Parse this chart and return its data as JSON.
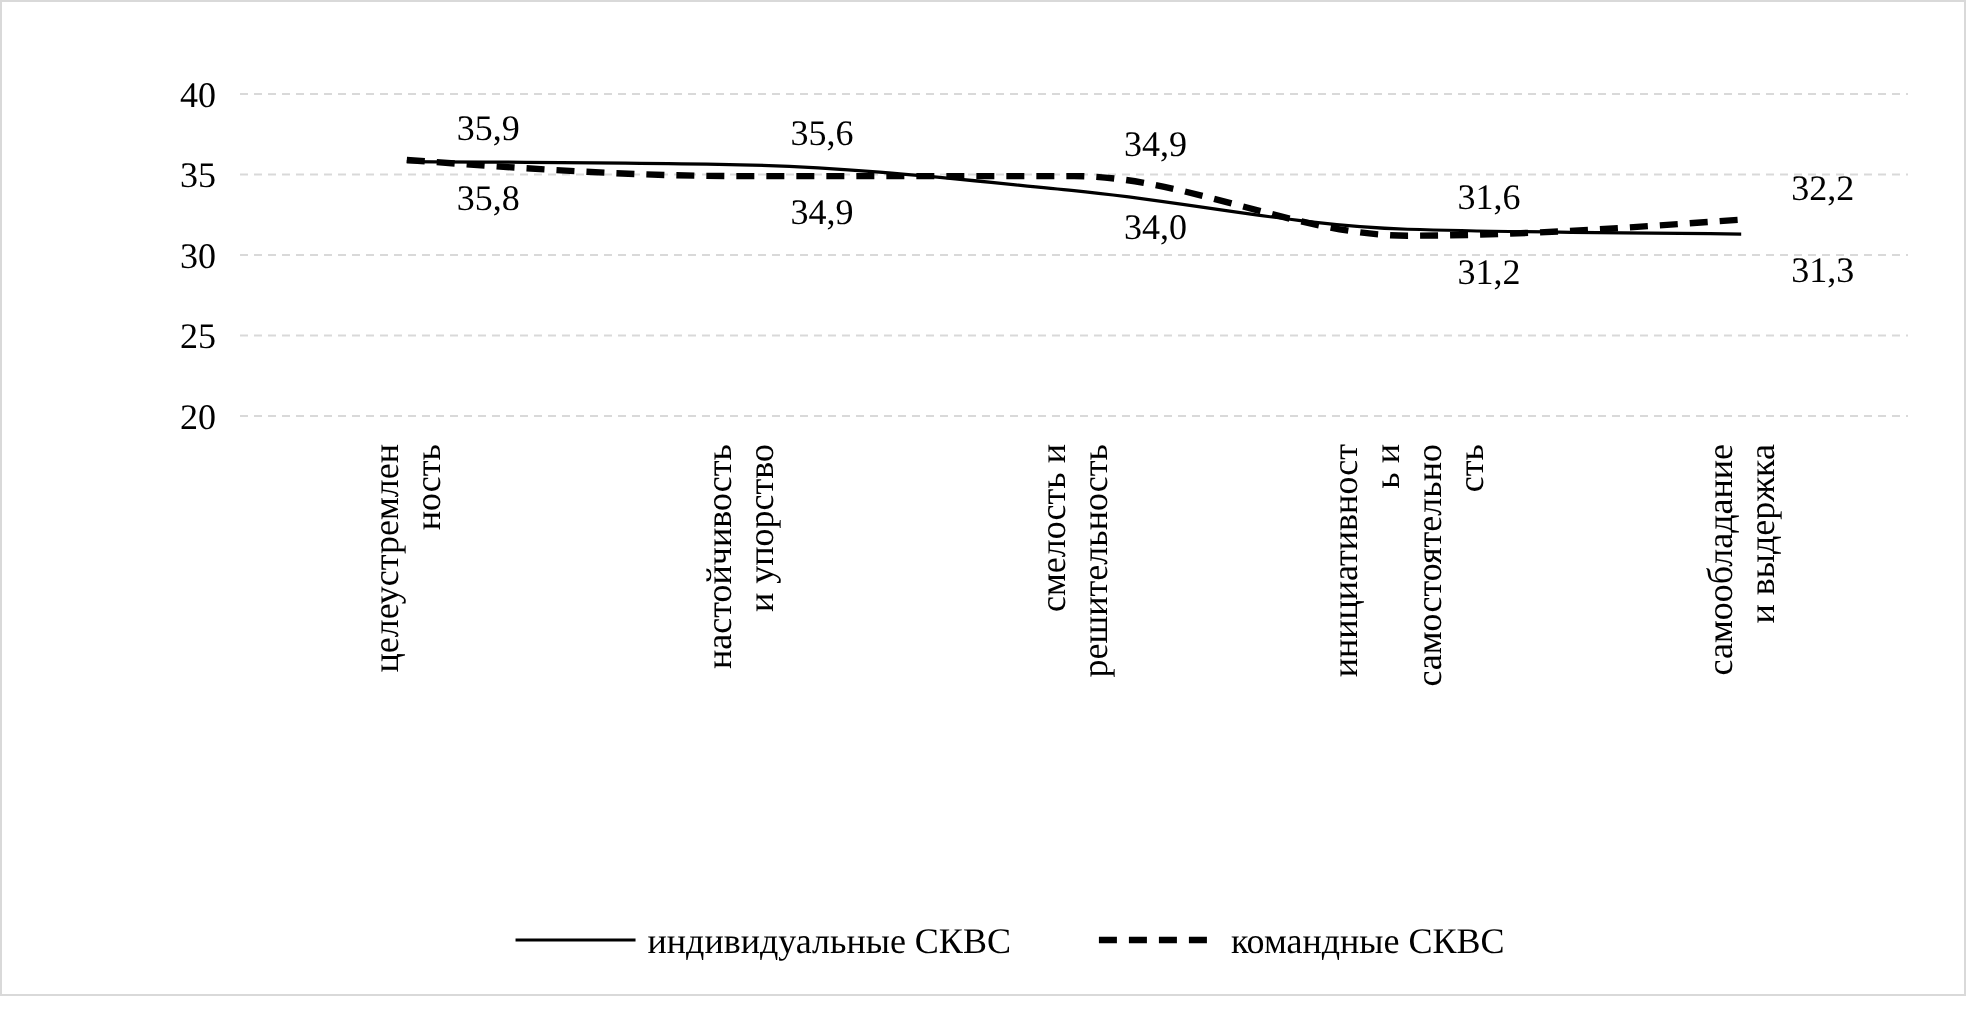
{
  "chart_data": {
    "type": "line",
    "categories": [
      "целеустремленность",
      "настойчивость и упорство",
      "смелость и решительность",
      "инициативность и самостоятельность",
      "самообладание и выдержка"
    ],
    "series": [
      {
        "name": "индивидуальные СКВС",
        "color": "#000000",
        "line_style": "solid",
        "values": [
          35.8,
          35.6,
          34.0,
          31.6,
          31.3
        ],
        "value_labels": [
          "35,8",
          "35,6",
          "34,0",
          "31,6",
          "31,3"
        ]
      },
      {
        "name": "командные СКВС",
        "color": "#000000",
        "line_style": "dashed",
        "values": [
          35.9,
          34.9,
          34.9,
          31.2,
          32.2
        ],
        "value_labels": [
          "35,9",
          "34,9",
          "34,9",
          "31,2",
          "32,2"
        ]
      }
    ],
    "ylim": [
      20,
      40
    ],
    "yticks": [
      20,
      25,
      30,
      35,
      40
    ],
    "grid": "y",
    "legend": "bottom",
    "marker": "none"
  }
}
